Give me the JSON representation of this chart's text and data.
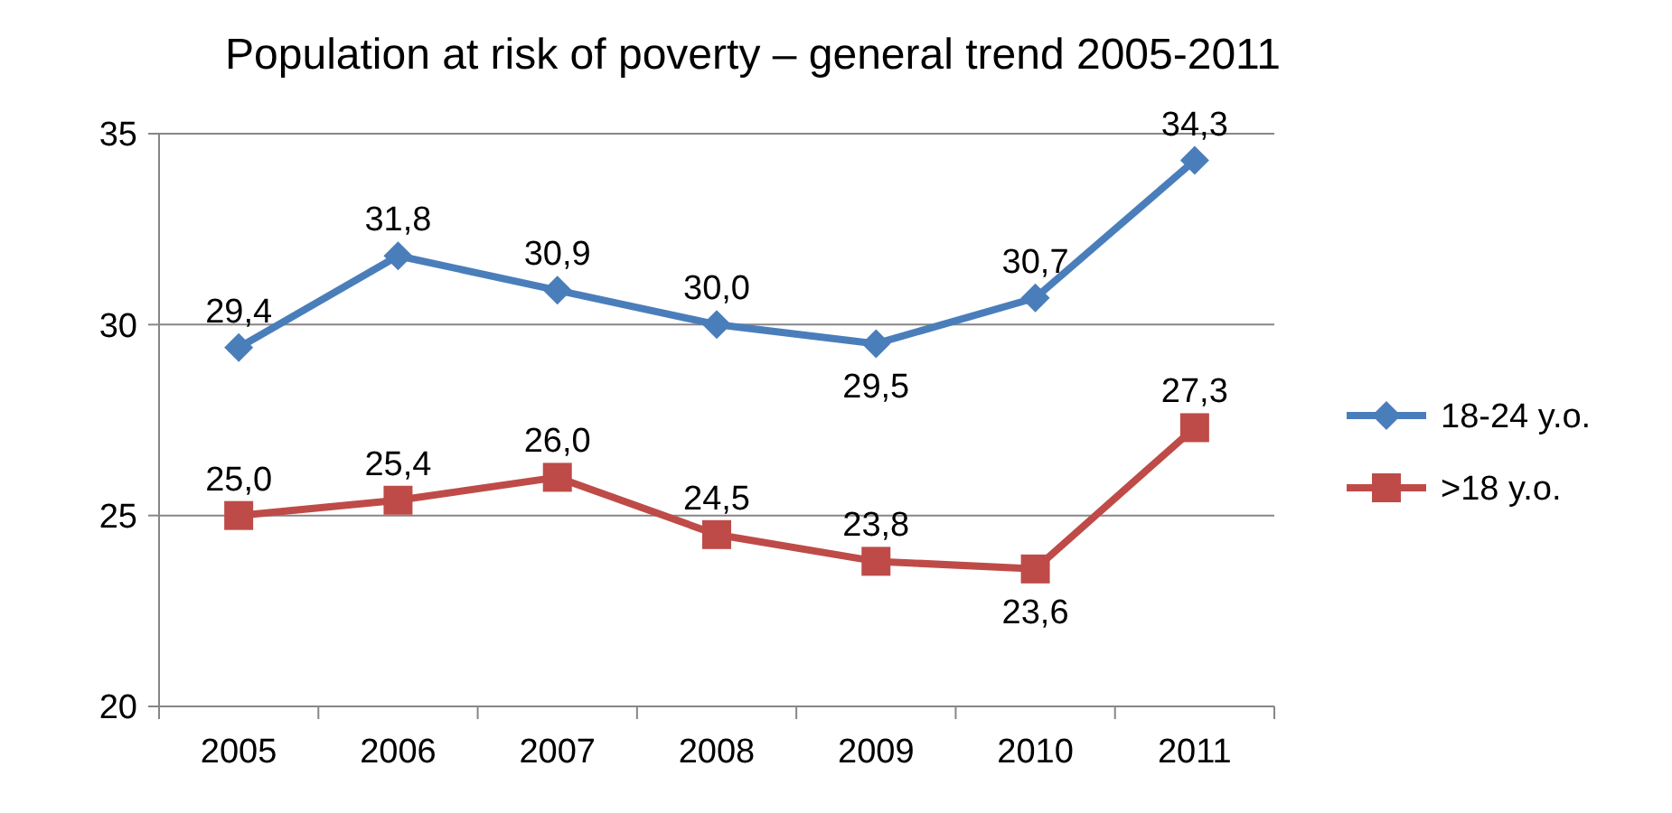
{
  "chart_data": {
    "type": "line",
    "title": "Population at risk of poverty – general trend 2005-2011",
    "categories": [
      "2005",
      "2006",
      "2007",
      "2008",
      "2009",
      "2010",
      "2011"
    ],
    "series": [
      {
        "name": "18-24 y.o.",
        "color": "#4a7ebb",
        "marker": "diamond",
        "values": [
          29.4,
          31.8,
          30.9,
          30.0,
          29.5,
          30.7,
          34.3
        ],
        "value_labels": [
          "29,4",
          "31,8",
          "30,9",
          "30,0",
          "29,5",
          "30,7",
          "34,3"
        ]
      },
      {
        "name": ">18 y.o.",
        "color": "#be4b48",
        "marker": "square",
        "values": [
          25.0,
          25.4,
          26.0,
          24.5,
          23.8,
          23.6,
          27.3
        ],
        "value_labels": [
          "25,0",
          "25,4",
          "26,0",
          "24,5",
          "23,8",
          "23,6",
          "27,3"
        ]
      }
    ],
    "ylim": [
      20,
      35
    ],
    "yticks": [
      20,
      25,
      30,
      35
    ],
    "grid": "y",
    "legend": "right"
  }
}
